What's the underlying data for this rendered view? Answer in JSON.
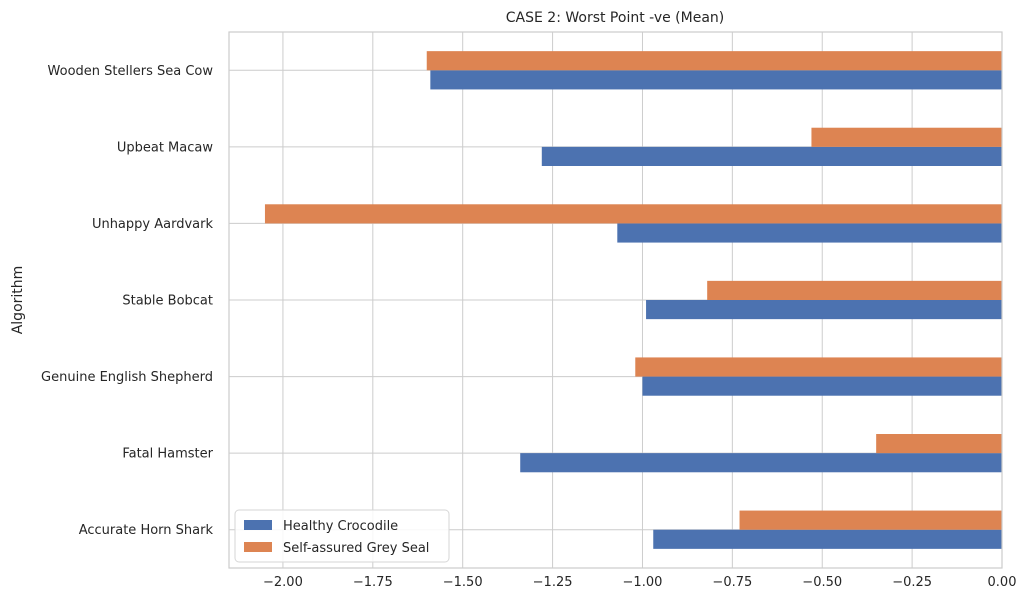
{
  "chart_data": {
    "type": "bar",
    "orientation": "horizontal",
    "title": "CASE 2: Worst Point -ve (Mean)",
    "xlabel": "",
    "ylabel": "Algorithm",
    "categories": [
      "Accurate Horn Shark",
      "Fatal Hamster",
      "Genuine English Shepherd",
      "Stable Bobcat",
      "Unhappy Aardvark",
      "Upbeat Macaw",
      "Wooden Stellers Sea Cow"
    ],
    "series": [
      {
        "name": "Healthy Crocodile",
        "color": "#4c72b0",
        "values": [
          -0.97,
          -1.34,
          -1.0,
          -0.99,
          -1.07,
          -1.28,
          -1.59
        ]
      },
      {
        "name": "Self-assured Grey Seal",
        "color": "#dd8452",
        "values": [
          -0.73,
          -0.35,
          -1.02,
          -0.82,
          -2.05,
          -0.53,
          -1.6
        ]
      }
    ],
    "xlim": [
      -2.15,
      0.0
    ],
    "xticks": [
      -2.0,
      -1.75,
      -1.5,
      -1.25,
      -1.0,
      -0.75,
      -0.5,
      -0.25,
      0.0
    ],
    "xtick_labels": [
      "−2.00",
      "−1.75",
      "−1.50",
      "−1.25",
      "−1.00",
      "−0.75",
      "−0.50",
      "−0.25",
      "0.00"
    ],
    "grid": true,
    "legend_position": "lower-left"
  }
}
